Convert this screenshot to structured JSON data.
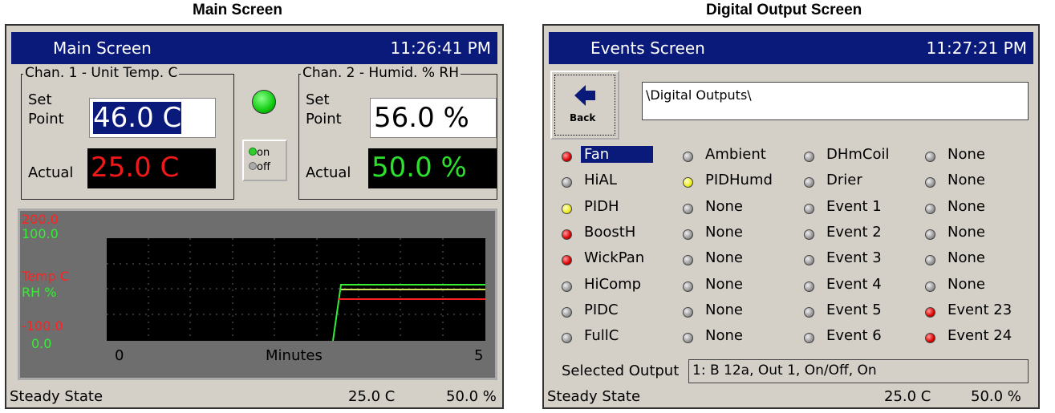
{
  "captions": [
    "Main Screen",
    "Digital Output Screen"
  ],
  "main": {
    "title": "Main Screen",
    "time": "11:26:41 PM",
    "chan1": {
      "label": "Chan. 1 - Unit Temp. C",
      "set_label": "Set Point",
      "set_value": "46.0 C",
      "actual_label": "Actual",
      "actual_value": "25.0 C"
    },
    "chan2": {
      "label": "Chan. 2 - Humid. % RH",
      "set_label": "Set Point",
      "set_value": "56.0 %",
      "actual_label": "Actual",
      "actual_value": "50.0 %"
    },
    "switch": {
      "on": "on",
      "off": "off"
    },
    "chart": {
      "temp_max": "200.0",
      "rh_max": "100.0",
      "temp_label": "Temp C",
      "rh_label": "RH %",
      "temp_min": "-100.0",
      "rh_min": "0.0",
      "x_start": "0",
      "x_label": "Minutes",
      "x_end": "5"
    },
    "status": {
      "state": "Steady State",
      "temp": "25.0 C",
      "rh": "50.0 %"
    }
  },
  "events": {
    "title": "Events Screen",
    "time": "11:27:21 PM",
    "back": "Back",
    "path": "\\Digital Outputs\\",
    "outputs": [
      [
        {
          "name": "Fan",
          "color": "red"
        },
        {
          "name": "HiAL",
          "color": "gray"
        },
        {
          "name": "PIDH",
          "color": "yellow"
        },
        {
          "name": "BoostH",
          "color": "red"
        },
        {
          "name": "WickPan",
          "color": "red"
        },
        {
          "name": "HiComp",
          "color": "gray"
        },
        {
          "name": "PIDC",
          "color": "gray"
        },
        {
          "name": "FullC",
          "color": "gray"
        }
      ],
      [
        {
          "name": "Ambient",
          "color": "gray"
        },
        {
          "name": "PIDHumd",
          "color": "yellow"
        },
        {
          "name": "None",
          "color": "gray"
        },
        {
          "name": "None",
          "color": "gray"
        },
        {
          "name": "None",
          "color": "gray"
        },
        {
          "name": "None",
          "color": "gray"
        },
        {
          "name": "None",
          "color": "gray"
        },
        {
          "name": "None",
          "color": "gray"
        }
      ],
      [
        {
          "name": "DHmCoil",
          "color": "gray"
        },
        {
          "name": "Drier",
          "color": "gray"
        },
        {
          "name": "Event 1",
          "color": "gray"
        },
        {
          "name": "Event 2",
          "color": "gray"
        },
        {
          "name": "Event 3",
          "color": "gray"
        },
        {
          "name": "Event 4",
          "color": "gray"
        },
        {
          "name": "Event 5",
          "color": "gray"
        },
        {
          "name": "Event 6",
          "color": "gray"
        }
      ],
      [
        {
          "name": "None",
          "color": "gray"
        },
        {
          "name": "None",
          "color": "gray"
        },
        {
          "name": "None",
          "color": "gray"
        },
        {
          "name": "None",
          "color": "gray"
        },
        {
          "name": "None",
          "color": "gray"
        },
        {
          "name": "None",
          "color": "gray"
        },
        {
          "name": "Event 23",
          "color": "red"
        },
        {
          "name": "Event 24",
          "color": "red"
        }
      ]
    ],
    "selected_label": "Selected Output",
    "selected_value": "1: B 12a, Out 1, On/Off, On",
    "status": {
      "state": "Steady State",
      "temp": "25.0 C",
      "rh": "50.0 %"
    }
  }
}
